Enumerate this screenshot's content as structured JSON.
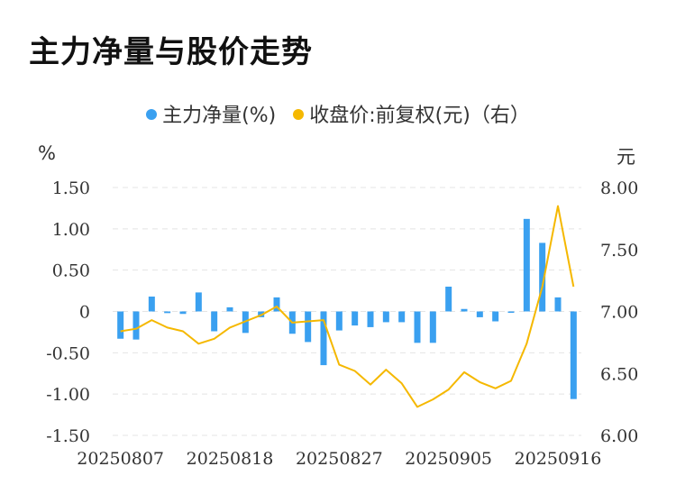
{
  "title": "主力净量与股价走势",
  "legend": {
    "bar_label": "主力净量(%)",
    "line_label": "收盘价:前复权(元)（右）"
  },
  "units": {
    "left": "%",
    "right": "元"
  },
  "colors": {
    "bar": "#3aa0f0",
    "line": "#f5b800",
    "grid": "#e4e4e4"
  },
  "chart_data": {
    "type": "bar+line",
    "title": "主力净量与股价走势",
    "x_labels": [
      "20250807",
      "20250818",
      "20250827",
      "20250905",
      "20250916"
    ],
    "x_label_indices": [
      0,
      7,
      14,
      21,
      28
    ],
    "left_axis": {
      "label": "%",
      "range": [
        -1.5,
        1.5
      ],
      "ticks": [
        "1.50",
        "1.00",
        "0.50",
        "0",
        "-0.50",
        "-1.00",
        "-1.50"
      ]
    },
    "right_axis": {
      "label": "元",
      "range": [
        6.0,
        8.0
      ],
      "ticks": [
        "8.00",
        "7.50",
        "7.00",
        "6.50",
        "6.00"
      ]
    },
    "series": [
      {
        "name": "主力净量(%)",
        "type": "bar",
        "axis": "left",
        "values": [
          -0.33,
          -0.34,
          0.18,
          -0.02,
          -0.03,
          0.23,
          -0.24,
          0.05,
          -0.26,
          -0.07,
          0.17,
          -0.27,
          -0.37,
          -0.65,
          -0.23,
          -0.17,
          -0.19,
          -0.13,
          -0.13,
          -0.38,
          -0.38,
          0.3,
          0.03,
          -0.07,
          -0.12,
          -0.01,
          1.12,
          0.83,
          0.17,
          -1.06
        ]
      },
      {
        "name": "收盘价:前复权(元)（右）",
        "type": "line",
        "axis": "right",
        "values": [
          6.84,
          6.86,
          6.93,
          6.87,
          6.84,
          6.74,
          6.78,
          6.87,
          6.92,
          6.97,
          7.04,
          6.91,
          6.92,
          6.93,
          6.57,
          6.52,
          6.41,
          6.53,
          6.42,
          6.23,
          6.29,
          6.37,
          6.51,
          6.43,
          6.38,
          6.44,
          6.74,
          7.2,
          7.85,
          7.2
        ]
      }
    ]
  }
}
